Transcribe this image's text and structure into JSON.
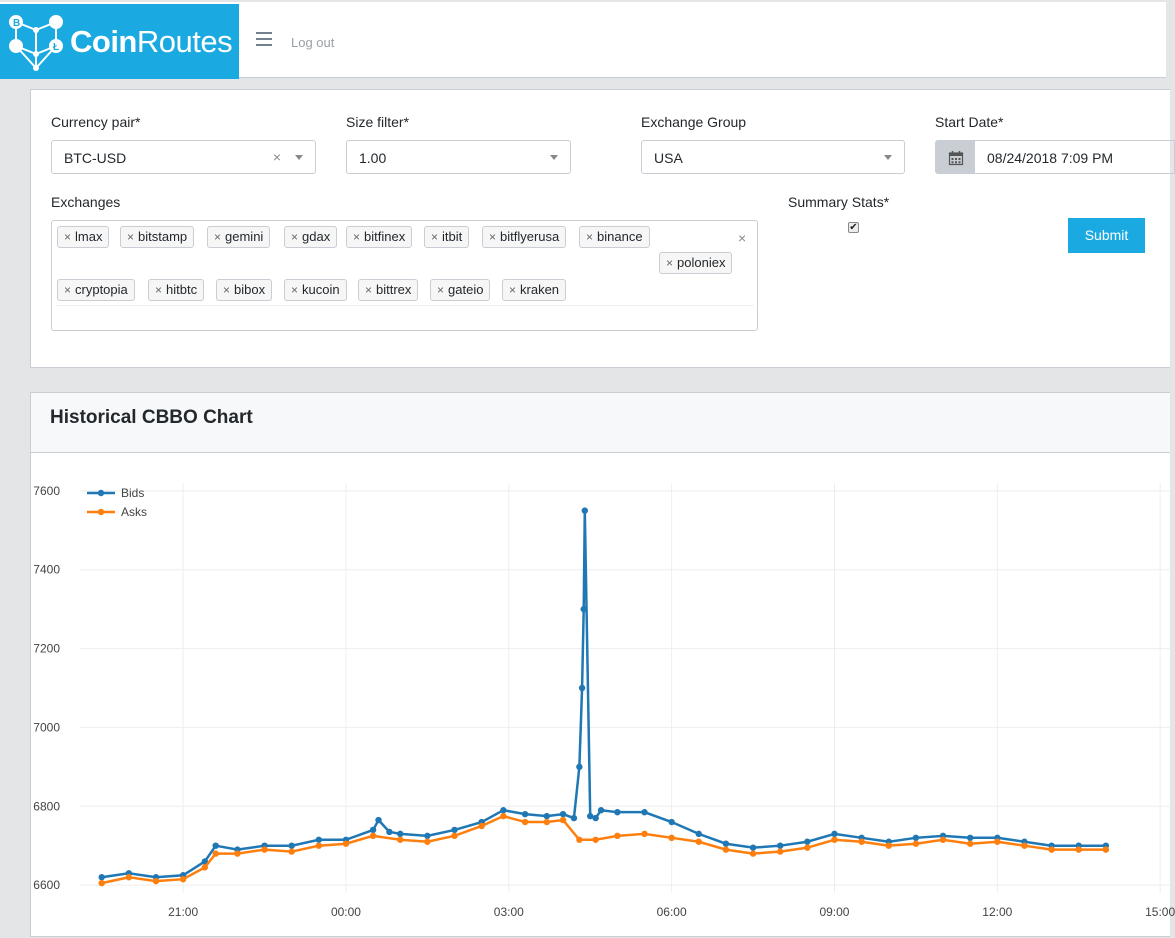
{
  "brand": {
    "bold": "Coin",
    "light": "Routes",
    "color": "#1aa9e0"
  },
  "header": {
    "menu_icon": "hamburger-icon",
    "logout_label": "Log out"
  },
  "form": {
    "currency_pair": {
      "label": "Currency pair*",
      "value": "BTC-USD"
    },
    "size_filter": {
      "label": "Size filter*",
      "value": "1.00"
    },
    "exchange_group": {
      "label": "Exchange Group",
      "value": "USA"
    },
    "start_date": {
      "label": "Start Date*",
      "value": "08/24/2018 7:09 PM",
      "icon": "calendar-icon"
    },
    "exchanges": {
      "label": "Exchanges",
      "items": [
        "lmax",
        "bitstamp",
        "gemini",
        "gdax",
        "bitfinex",
        "itbit",
        "bitflyerusa",
        "binance",
        "poloniex",
        "cryptopia",
        "hitbtc",
        "bibox",
        "kucoin",
        "bittrex",
        "gateio",
        "kraken"
      ]
    },
    "summary_stats": {
      "label": "Summary Stats*",
      "checked": true
    },
    "submit_label": "Submit"
  },
  "chart": {
    "title": "Historical CBBO Chart"
  },
  "chart_data": {
    "type": "line",
    "x_tick_labels": [
      "21:00",
      "00:00",
      "03:00",
      "06:00",
      "09:00",
      "12:00",
      "15:00"
    ],
    "x_ticks_hours": [
      21,
      24,
      27,
      30,
      33,
      36,
      39
    ],
    "xlim_hours": [
      19.1,
      39.2
    ],
    "ylim": [
      6580,
      7620
    ],
    "y_ticks": [
      6600,
      6800,
      7000,
      7200,
      7400,
      7600
    ],
    "grid": true,
    "legend": "top-left",
    "series": [
      {
        "name": "Bids",
        "color": "#1f77b4",
        "x": [
          19.5,
          20.0,
          20.5,
          21.0,
          21.4,
          21.6,
          22.0,
          22.5,
          23.0,
          23.5,
          24.0,
          24.5,
          24.6,
          24.8,
          25.0,
          25.5,
          26.0,
          26.5,
          26.9,
          27.3,
          27.7,
          28.0,
          28.2,
          28.3,
          28.35,
          28.38,
          28.4,
          28.5,
          28.6,
          28.7,
          29.0,
          29.5,
          30.0,
          30.5,
          31.0,
          31.5,
          32.0,
          32.5,
          33.0,
          33.5,
          34.0,
          34.5,
          35.0,
          35.5,
          36.0,
          36.5,
          37.0,
          37.5,
          38.0
        ],
        "y": [
          6620,
          6630,
          6620,
          6625,
          6660,
          6700,
          6690,
          6700,
          6700,
          6715,
          6715,
          6740,
          6765,
          6735,
          6730,
          6725,
          6740,
          6760,
          6790,
          6780,
          6775,
          6780,
          6770,
          6900,
          7100,
          7300,
          7550,
          6775,
          6770,
          6790,
          6785,
          6785,
          6760,
          6730,
          6705,
          6695,
          6700,
          6710,
          6730,
          6720,
          6710,
          6720,
          6725,
          6720,
          6720,
          6710,
          6700,
          6700,
          6700
        ]
      },
      {
        "name": "Asks",
        "color": "#ff7f0e",
        "x": [
          19.5,
          20.0,
          20.5,
          21.0,
          21.4,
          21.6,
          22.0,
          22.5,
          23.0,
          23.5,
          24.0,
          24.5,
          25.0,
          25.5,
          26.0,
          26.5,
          26.9,
          27.3,
          27.7,
          28.0,
          28.3,
          28.6,
          29.0,
          29.5,
          30.0,
          30.5,
          31.0,
          31.5,
          32.0,
          32.5,
          33.0,
          33.5,
          34.0,
          34.5,
          35.0,
          35.5,
          36.0,
          36.5,
          37.0,
          37.5,
          38.0
        ],
        "y": [
          6605,
          6620,
          6610,
          6615,
          6645,
          6680,
          6680,
          6690,
          6685,
          6700,
          6705,
          6725,
          6715,
          6710,
          6725,
          6750,
          6775,
          6760,
          6760,
          6765,
          6715,
          6715,
          6725,
          6730,
          6720,
          6710,
          6690,
          6680,
          6685,
          6695,
          6715,
          6710,
          6700,
          6705,
          6715,
          6705,
          6710,
          6700,
          6690,
          6690,
          6690
        ]
      }
    ]
  }
}
